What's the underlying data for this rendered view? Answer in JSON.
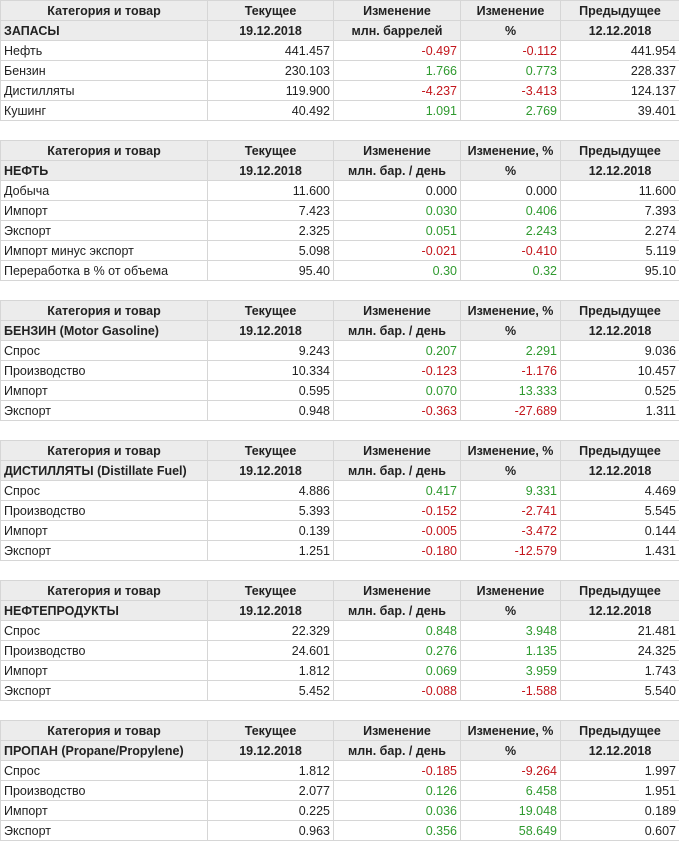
{
  "tables": [
    {
      "header": [
        [
          "Категория и товар",
          "Текущее",
          "Изменение",
          "Изменение",
          "Предыдущее"
        ],
        [
          "ЗАПАСЫ",
          "19.12.2018",
          "млн. баррелей",
          "%",
          "12.12.2018"
        ]
      ],
      "rows": [
        [
          "Нефть",
          "441.457",
          "-0.497",
          "-0.112",
          "441.954"
        ],
        [
          "Бензин",
          "230.103",
          "1.766",
          "0.773",
          "228.337"
        ],
        [
          "Дистилляты",
          "119.900",
          "-4.237",
          "-3.413",
          "124.137"
        ],
        [
          "Кушинг",
          "40.492",
          "1.091",
          "2.769",
          "39.401"
        ]
      ]
    },
    {
      "header": [
        [
          "Категория и товар",
          "Текущее",
          "Изменение",
          "Изменение, %",
          "Предыдущее"
        ],
        [
          "НЕФТЬ",
          "19.12.2018",
          "млн. бар. / день",
          "%",
          "12.12.2018"
        ]
      ],
      "rows": [
        [
          "Добыча",
          "11.600",
          "0.000",
          "0.000",
          "11.600"
        ],
        [
          "Импорт",
          "7.423",
          "0.030",
          "0.406",
          "7.393"
        ],
        [
          "Экспорт",
          "2.325",
          "0.051",
          "2.243",
          "2.274"
        ],
        [
          "Импорт минус экспорт",
          "5.098",
          "-0.021",
          "-0.410",
          "5.119"
        ],
        [
          "Переработка в % от объема",
          "95.40",
          "0.30",
          "0.32",
          "95.10"
        ]
      ]
    },
    {
      "header": [
        [
          "Категория и товар",
          "Текущее",
          "Изменение",
          "Изменение, %",
          "Предыдущее"
        ],
        [
          "БЕНЗИН (Motor Gasoline)",
          "19.12.2018",
          "млн. бар. / день",
          "%",
          "12.12.2018"
        ]
      ],
      "rows": [
        [
          "Спрос",
          "9.243",
          "0.207",
          "2.291",
          "9.036"
        ],
        [
          "Производство",
          "10.334",
          "-0.123",
          "-1.176",
          "10.457"
        ],
        [
          "Импорт",
          "0.595",
          "0.070",
          "13.333",
          "0.525"
        ],
        [
          "Экспорт",
          "0.948",
          "-0.363",
          "-27.689",
          "1.311"
        ]
      ]
    },
    {
      "header": [
        [
          "Категория и товар",
          "Текущее",
          "Изменение",
          "Изменение, %",
          "Предыдущее"
        ],
        [
          "ДИСТИЛЛЯТЫ (Distillate Fuel)",
          "19.12.2018",
          "млн. бар. / день",
          "%",
          "12.12.2018"
        ]
      ],
      "rows": [
        [
          "Спрос",
          "4.886",
          "0.417",
          "9.331",
          "4.469"
        ],
        [
          "Производство",
          "5.393",
          "-0.152",
          "-2.741",
          "5.545"
        ],
        [
          "Импорт",
          "0.139",
          "-0.005",
          "-3.472",
          "0.144"
        ],
        [
          "Экспорт",
          "1.251",
          "-0.180",
          "-12.579",
          "1.431"
        ]
      ]
    },
    {
      "header": [
        [
          "Категория и товар",
          "Текущее",
          "Изменение",
          "Изменение",
          "Предыдущее"
        ],
        [
          "НЕФТЕПРОДУКТЫ",
          "19.12.2018",
          "млн. бар. / день",
          "%",
          "12.12.2018"
        ]
      ],
      "rows": [
        [
          "Спрос",
          "22.329",
          "0.848",
          "3.948",
          "21.481"
        ],
        [
          "Производство",
          "24.601",
          "0.276",
          "1.135",
          "24.325"
        ],
        [
          "Импорт",
          "1.812",
          "0.069",
          "3.959",
          "1.743"
        ],
        [
          "Экспорт",
          "5.452",
          "-0.088",
          "-1.588",
          "5.540"
        ]
      ]
    },
    {
      "header": [
        [
          "Категория и товар",
          "Текущее",
          "Изменение",
          "Изменение, %",
          "Предыдущее"
        ],
        [
          "ПРОПАН (Propane/Propylene)",
          "19.12.2018",
          "млн. бар. / день",
          "%",
          "12.12.2018"
        ]
      ],
      "rows": [
        [
          "Спрос",
          "1.812",
          "-0.185",
          "-9.264",
          "1.997"
        ],
        [
          "Производство",
          "2.077",
          "0.126",
          "6.458",
          "1.951"
        ],
        [
          "Импорт",
          "0.225",
          "0.036",
          "19.048",
          "0.189"
        ],
        [
          "Экспорт",
          "0.963",
          "0.356",
          "58.649",
          "0.607"
        ]
      ]
    }
  ]
}
